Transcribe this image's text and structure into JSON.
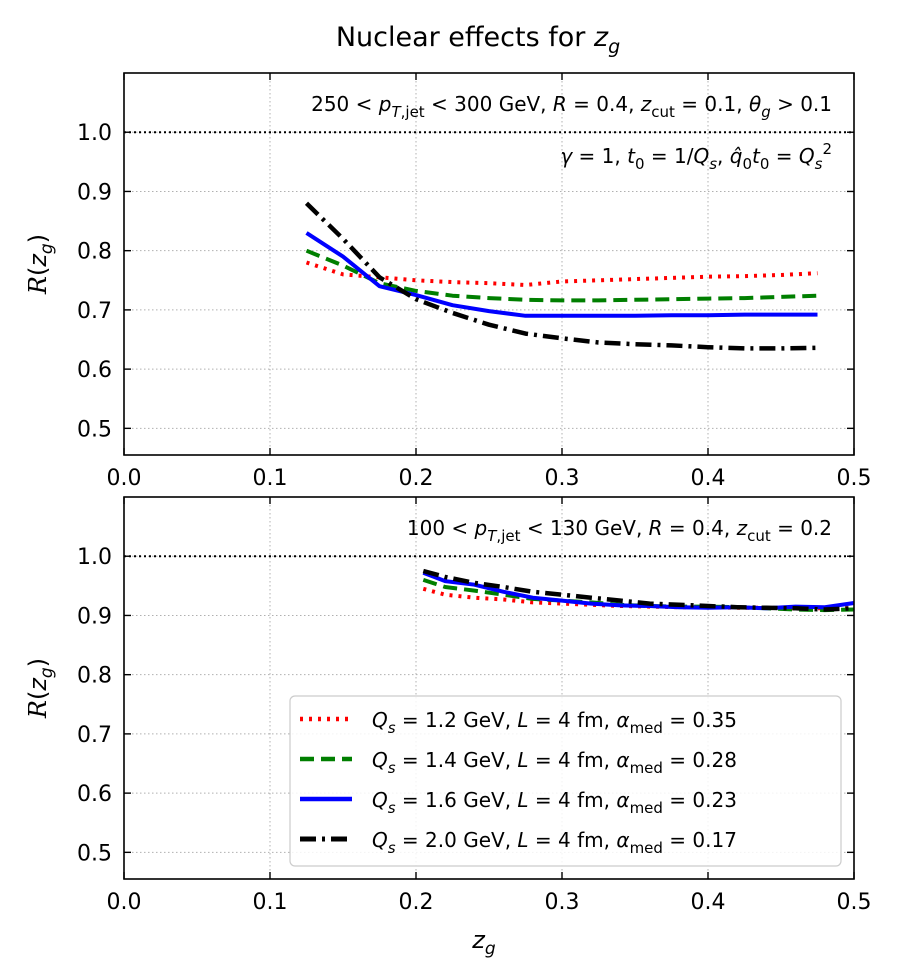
{
  "figure_title": "Nuclear effects for z_g",
  "xlabel": "z_g",
  "ylabel": "R(z_g)",
  "chart_data": [
    {
      "type": "line",
      "annotations": [
        "250 < p_T,jet < 300 GeV, R = 0.4, z_cut = 0.1, θ_g > 0.1",
        "γ = 1, t_0 = 1/Q_s, q̂_0 t_0 = Q_s^2"
      ],
      "xlim": [
        0.0,
        0.5
      ],
      "ylim": [
        0.455,
        1.1
      ],
      "xticks": [
        "0.0",
        "0.1",
        "0.2",
        "0.3",
        "0.4",
        "0.5"
      ],
      "yticks": [
        "0.5",
        "0.6",
        "0.7",
        "0.8",
        "0.9",
        "1.0"
      ],
      "reference_line": 1.0,
      "series": [
        {
          "name": "Q_s = 1.2 GeV, L = 4 fm, α_med = 0.35",
          "color": "#ff0000",
          "style": "dotted",
          "x": [
            0.125,
            0.15,
            0.175,
            0.2,
            0.225,
            0.25,
            0.275,
            0.3,
            0.325,
            0.35,
            0.375,
            0.4,
            0.425,
            0.45,
            0.475
          ],
          "y": [
            0.78,
            0.76,
            0.755,
            0.75,
            0.747,
            0.745,
            0.742,
            0.748,
            0.75,
            0.752,
            0.754,
            0.756,
            0.757,
            0.759,
            0.762
          ]
        },
        {
          "name": "Q_s = 1.4 GeV, L = 4 fm, α_med = 0.28",
          "color": "#007f00",
          "style": "dashed",
          "x": [
            0.125,
            0.15,
            0.175,
            0.2,
            0.225,
            0.25,
            0.275,
            0.3,
            0.325,
            0.35,
            0.375,
            0.4,
            0.425,
            0.45,
            0.475
          ],
          "y": [
            0.8,
            0.775,
            0.745,
            0.732,
            0.724,
            0.72,
            0.717,
            0.716,
            0.716,
            0.717,
            0.718,
            0.719,
            0.72,
            0.722,
            0.724
          ]
        },
        {
          "name": "Q_s = 1.6 GeV, L = 4 fm, α_med = 0.23",
          "color": "#0000ff",
          "style": "solid",
          "x": [
            0.125,
            0.15,
            0.175,
            0.2,
            0.225,
            0.25,
            0.275,
            0.3,
            0.325,
            0.35,
            0.375,
            0.4,
            0.425,
            0.45,
            0.475
          ],
          "y": [
            0.83,
            0.79,
            0.74,
            0.725,
            0.708,
            0.698,
            0.69,
            0.69,
            0.69,
            0.69,
            0.691,
            0.691,
            0.692,
            0.692,
            0.692
          ]
        },
        {
          "name": "Q_s = 2.0 GeV, L = 4 fm, α_med = 0.17",
          "color": "#000000",
          "style": "dashdot",
          "x": [
            0.125,
            0.15,
            0.175,
            0.2,
            0.225,
            0.25,
            0.275,
            0.3,
            0.325,
            0.35,
            0.375,
            0.4,
            0.425,
            0.45,
            0.475
          ],
          "y": [
            0.88,
            0.82,
            0.755,
            0.718,
            0.695,
            0.675,
            0.66,
            0.652,
            0.645,
            0.642,
            0.64,
            0.637,
            0.635,
            0.635,
            0.636
          ]
        }
      ]
    },
    {
      "type": "line",
      "annotations": [
        "100 < p_T,jet < 130 GeV, R = 0.4, z_cut = 0.2"
      ],
      "xlim": [
        0.0,
        0.5
      ],
      "ylim": [
        0.455,
        1.1
      ],
      "xticks": [
        "0.0",
        "0.1",
        "0.2",
        "0.3",
        "0.4",
        "0.5"
      ],
      "yticks": [
        "0.5",
        "0.6",
        "0.7",
        "0.8",
        "0.9",
        "1.0"
      ],
      "reference_line": 1.0,
      "legend_position": "lower-right",
      "series": [
        {
          "name": "Q_s = 1.2 GeV, L = 4 fm, α_med = 0.35",
          "color": "#ff0000",
          "style": "dotted",
          "x": [
            0.205,
            0.22,
            0.24,
            0.26,
            0.28,
            0.3,
            0.32,
            0.34,
            0.36,
            0.38,
            0.4,
            0.42,
            0.44,
            0.46,
            0.48,
            0.5
          ],
          "y": [
            0.945,
            0.935,
            0.93,
            0.927,
            0.922,
            0.92,
            0.918,
            0.916,
            0.915,
            0.914,
            0.914,
            0.913,
            0.913,
            0.912,
            0.912,
            0.912
          ]
        },
        {
          "name": "Q_s = 1.4 GeV, L = 4 fm, α_med = 0.28",
          "color": "#007f00",
          "style": "dashed",
          "x": [
            0.205,
            0.22,
            0.24,
            0.26,
            0.28,
            0.3,
            0.32,
            0.34,
            0.36,
            0.38,
            0.4,
            0.42,
            0.44,
            0.46,
            0.48,
            0.5
          ],
          "y": [
            0.96,
            0.948,
            0.942,
            0.935,
            0.928,
            0.925,
            0.922,
            0.918,
            0.916,
            0.915,
            0.915,
            0.914,
            0.912,
            0.91,
            0.909,
            0.91
          ]
        },
        {
          "name": "Q_s = 1.6 GeV, L = 4 fm, α_med = 0.23",
          "color": "#0000ff",
          "style": "solid",
          "x": [
            0.205,
            0.22,
            0.24,
            0.26,
            0.28,
            0.3,
            0.32,
            0.34,
            0.36,
            0.38,
            0.4,
            0.42,
            0.44,
            0.46,
            0.48,
            0.5
          ],
          "y": [
            0.972,
            0.958,
            0.952,
            0.94,
            0.93,
            0.925,
            0.92,
            0.917,
            0.916,
            0.914,
            0.913,
            0.914,
            0.912,
            0.915,
            0.914,
            0.921
          ]
        },
        {
          "name": "Q_s = 2.0 GeV, L = 4 fm, α_med = 0.17",
          "color": "#000000",
          "style": "dashdot",
          "x": [
            0.205,
            0.22,
            0.24,
            0.26,
            0.28,
            0.3,
            0.32,
            0.34,
            0.36,
            0.38,
            0.4,
            0.42,
            0.44,
            0.46,
            0.48,
            0.5
          ],
          "y": [
            0.975,
            0.965,
            0.955,
            0.948,
            0.94,
            0.935,
            0.93,
            0.925,
            0.92,
            0.918,
            0.916,
            0.914,
            0.913,
            0.912,
            0.91,
            0.912
          ]
        }
      ]
    }
  ]
}
